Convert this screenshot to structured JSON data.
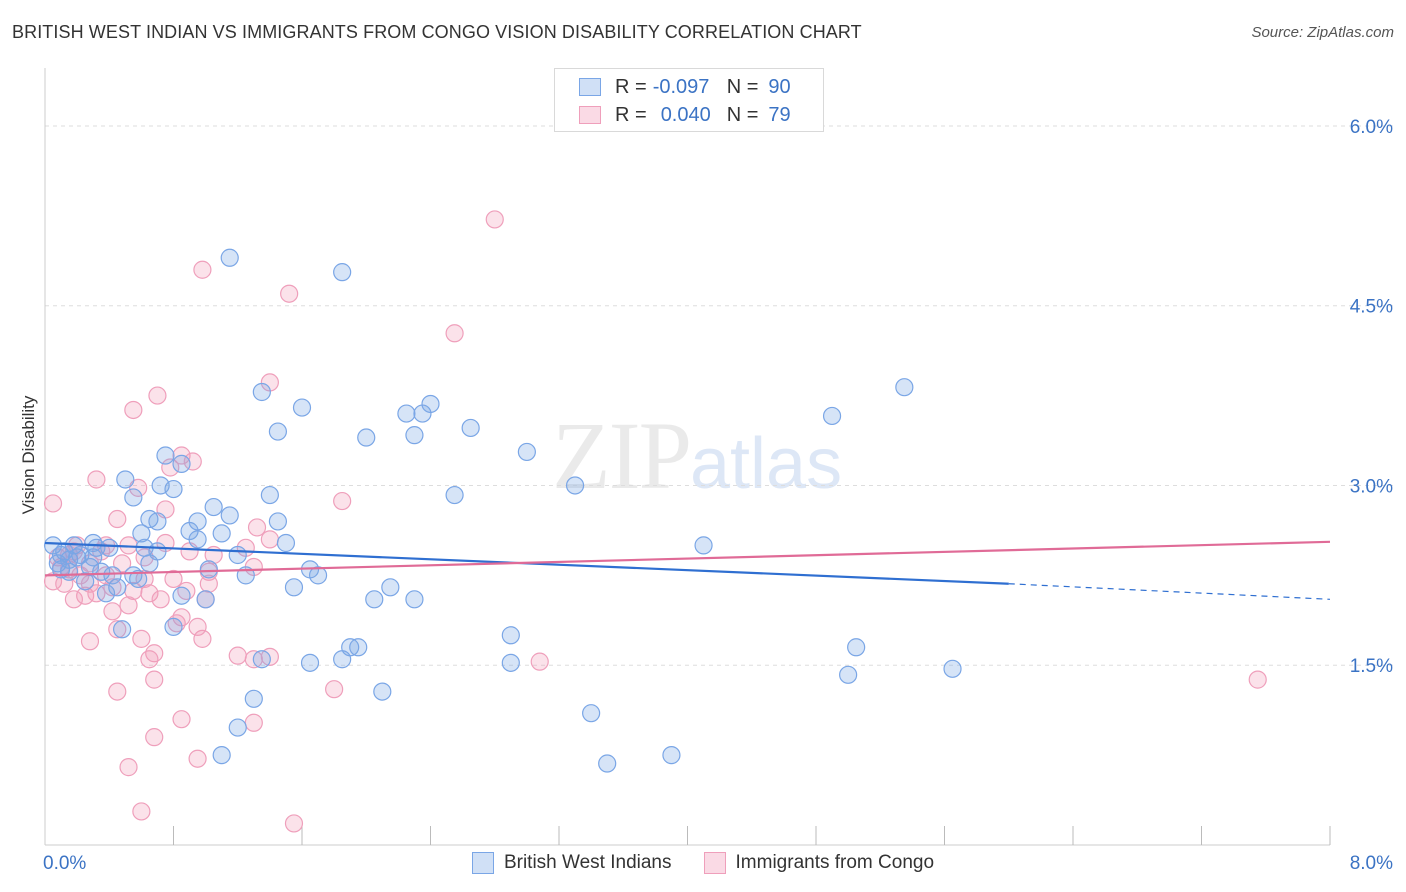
{
  "title": "BRITISH WEST INDIAN VS IMMIGRANTS FROM CONGO VISION DISABILITY CORRELATION CHART",
  "source": "Source: ZipAtlas.com",
  "watermark": {
    "zip": "ZIP",
    "atlas": "atlas"
  },
  "legend_top": [
    {
      "r_label": "R =",
      "r_value": "-0.097",
      "n_label": "N =",
      "n_value": "90"
    },
    {
      "r_label": "R =",
      "r_value": "0.040",
      "n_label": "N =",
      "n_value": "79"
    }
  ],
  "legend_bottom": [
    "British West Indians",
    "Immigrants from Congo"
  ],
  "colors": {
    "blue_fill": "rgba(120,165,230,0.30)",
    "blue_stroke": "#7aa6e6",
    "blue_line": "#2f6fd1",
    "pink_fill": "rgba(240,150,180,0.28)",
    "pink_stroke": "#ef9fbb",
    "pink_line": "#e06b97",
    "tick_label": "#3b73c4",
    "grid": "#dddddd"
  },
  "chart_data": {
    "type": "scatter",
    "title": "BRITISH WEST INDIAN VS IMMIGRANTS FROM CONGO VISION DISABILITY CORRELATION CHART",
    "xlabel": "",
    "ylabel": "Vision Disability",
    "xlim": [
      0,
      8.0
    ],
    "ylim": [
      0,
      6.4
    ],
    "x_tick_labels": [
      "0.0%",
      "8.0%"
    ],
    "y_ticks": [
      1.5,
      3.0,
      4.5,
      6.0
    ],
    "y_tick_labels": [
      "1.5%",
      "3.0%",
      "4.5%",
      "6.0%"
    ],
    "grid": true,
    "series": [
      {
        "name": "British West Indians",
        "trend": {
          "x0": 0.0,
          "y0": 2.52,
          "x1": 6.0,
          "y1": 2.18,
          "dash_to_x": 8.0,
          "dash_to_y": 2.05
        },
        "points": [
          [
            1.15,
            4.9
          ],
          [
            1.85,
            4.78
          ],
          [
            0.5,
            3.05
          ],
          [
            0.65,
            2.72
          ],
          [
            0.72,
            3.0
          ],
          [
            0.8,
            2.97
          ],
          [
            0.85,
            3.18
          ],
          [
            0.75,
            3.25
          ],
          [
            0.55,
            2.9
          ],
          [
            0.6,
            2.6
          ],
          [
            0.7,
            2.7
          ],
          [
            0.4,
            2.48
          ],
          [
            0.3,
            2.52
          ],
          [
            0.2,
            2.4
          ],
          [
            0.12,
            2.45
          ],
          [
            0.08,
            2.35
          ],
          [
            0.05,
            2.5
          ],
          [
            0.1,
            2.3
          ],
          [
            0.15,
            2.38
          ],
          [
            0.25,
            2.2
          ],
          [
            0.35,
            2.28
          ],
          [
            0.45,
            2.15
          ],
          [
            0.55,
            2.25
          ],
          [
            0.62,
            2.48
          ],
          [
            0.9,
            2.62
          ],
          [
            0.95,
            2.55
          ],
          [
            1.05,
            2.82
          ],
          [
            1.1,
            2.6
          ],
          [
            1.2,
            2.42
          ],
          [
            1.25,
            2.25
          ],
          [
            1.4,
            2.92
          ],
          [
            1.45,
            2.7
          ],
          [
            1.5,
            2.52
          ],
          [
            1.55,
            2.15
          ],
          [
            1.65,
            2.3
          ],
          [
            1.7,
            2.25
          ],
          [
            1.35,
            3.78
          ],
          [
            1.45,
            3.45
          ],
          [
            1.6,
            3.65
          ],
          [
            2.0,
            3.4
          ],
          [
            2.25,
            3.6
          ],
          [
            2.3,
            3.42
          ],
          [
            2.35,
            3.6
          ],
          [
            2.4,
            3.68
          ],
          [
            2.65,
            3.48
          ],
          [
            2.55,
            2.92
          ],
          [
            3.0,
            3.28
          ],
          [
            3.3,
            3.0
          ],
          [
            2.05,
            2.05
          ],
          [
            2.15,
            2.15
          ],
          [
            2.3,
            2.05
          ],
          [
            1.9,
            1.65
          ],
          [
            1.95,
            1.65
          ],
          [
            1.85,
            1.55
          ],
          [
            1.65,
            1.52
          ],
          [
            1.35,
            1.55
          ],
          [
            1.3,
            1.22
          ],
          [
            1.2,
            0.98
          ],
          [
            1.1,
            0.75
          ],
          [
            2.1,
            1.28
          ],
          [
            2.9,
            1.75
          ],
          [
            2.9,
            1.52
          ],
          [
            3.4,
            1.1
          ],
          [
            3.5,
            0.68
          ],
          [
            3.9,
            0.75
          ],
          [
            4.1,
            2.5
          ],
          [
            4.9,
            3.58
          ],
          [
            5.35,
            3.82
          ],
          [
            5.05,
            1.65
          ],
          [
            5.0,
            1.42
          ],
          [
            5.65,
            1.47
          ],
          [
            0.85,
            2.08
          ],
          [
            1.0,
            2.05
          ],
          [
            0.48,
            1.8
          ],
          [
            0.8,
            1.82
          ],
          [
            0.18,
            2.5
          ],
          [
            0.28,
            2.32
          ],
          [
            0.38,
            2.1
          ],
          [
            0.22,
            2.42
          ],
          [
            0.32,
            2.48
          ],
          [
            0.65,
            2.35
          ],
          [
            0.58,
            2.22
          ],
          [
            0.15,
            2.28
          ],
          [
            0.1,
            2.42
          ],
          [
            0.42,
            2.25
          ],
          [
            0.95,
            2.7
          ],
          [
            1.15,
            2.75
          ],
          [
            1.02,
            2.3
          ],
          [
            0.7,
            2.45
          ],
          [
            0.3,
            2.4
          ]
        ]
      },
      {
        "name": "Immigrants from Congo",
        "trend": {
          "x0": 0.0,
          "y0": 2.25,
          "x1": 8.0,
          "y1": 2.53
        },
        "points": [
          [
            2.8,
            5.22
          ],
          [
            0.98,
            4.8
          ],
          [
            1.52,
            4.6
          ],
          [
            2.55,
            4.27
          ],
          [
            1.4,
            3.86
          ],
          [
            0.7,
            3.75
          ],
          [
            0.55,
            3.63
          ],
          [
            0.85,
            3.25
          ],
          [
            0.78,
            3.15
          ],
          [
            0.32,
            3.05
          ],
          [
            0.58,
            2.98
          ],
          [
            1.85,
            2.87
          ],
          [
            0.05,
            2.85
          ],
          [
            0.45,
            2.72
          ],
          [
            1.32,
            2.65
          ],
          [
            1.4,
            2.55
          ],
          [
            0.52,
            2.5
          ],
          [
            0.75,
            2.52
          ],
          [
            0.9,
            2.45
          ],
          [
            1.25,
            2.48
          ],
          [
            0.18,
            2.45
          ],
          [
            0.08,
            2.4
          ],
          [
            0.28,
            2.35
          ],
          [
            0.35,
            2.45
          ],
          [
            0.62,
            2.4
          ],
          [
            0.48,
            2.35
          ],
          [
            0.15,
            2.3
          ],
          [
            0.22,
            2.25
          ],
          [
            0.38,
            2.25
          ],
          [
            0.05,
            2.2
          ],
          [
            0.12,
            2.18
          ],
          [
            0.42,
            2.15
          ],
          [
            0.55,
            2.12
          ],
          [
            0.65,
            2.1
          ],
          [
            0.25,
            2.08
          ],
          [
            0.18,
            2.05
          ],
          [
            0.32,
            2.1
          ],
          [
            0.72,
            2.05
          ],
          [
            0.88,
            2.12
          ],
          [
            1.02,
            2.28
          ],
          [
            1.05,
            2.42
          ],
          [
            1.3,
            2.32
          ],
          [
            1.0,
            2.05
          ],
          [
            0.85,
            1.9
          ],
          [
            0.6,
            1.72
          ],
          [
            0.42,
            1.95
          ],
          [
            0.28,
            1.7
          ],
          [
            0.45,
            1.8
          ],
          [
            0.68,
            1.6
          ],
          [
            0.82,
            1.85
          ],
          [
            0.98,
            1.72
          ],
          [
            1.2,
            1.58
          ],
          [
            1.4,
            1.57
          ],
          [
            1.3,
            1.55
          ],
          [
            0.68,
            1.38
          ],
          [
            0.45,
            1.28
          ],
          [
            0.85,
            1.05
          ],
          [
            1.3,
            1.02
          ],
          [
            0.68,
            0.9
          ],
          [
            0.95,
            0.72
          ],
          [
            0.52,
            0.65
          ],
          [
            0.6,
            0.28
          ],
          [
            1.55,
            0.18
          ],
          [
            1.8,
            1.3
          ],
          [
            3.08,
            1.53
          ],
          [
            7.55,
            1.38
          ],
          [
            0.92,
            3.2
          ],
          [
            0.75,
            2.8
          ],
          [
            0.2,
            2.5
          ],
          [
            0.1,
            2.32
          ],
          [
            0.38,
            2.5
          ],
          [
            0.28,
            2.18
          ],
          [
            0.52,
            2.0
          ],
          [
            0.62,
            2.22
          ],
          [
            1.02,
            2.18
          ],
          [
            0.8,
            2.22
          ],
          [
            0.15,
            2.42
          ],
          [
            0.95,
            1.82
          ],
          [
            0.65,
            1.55
          ]
        ]
      }
    ]
  }
}
